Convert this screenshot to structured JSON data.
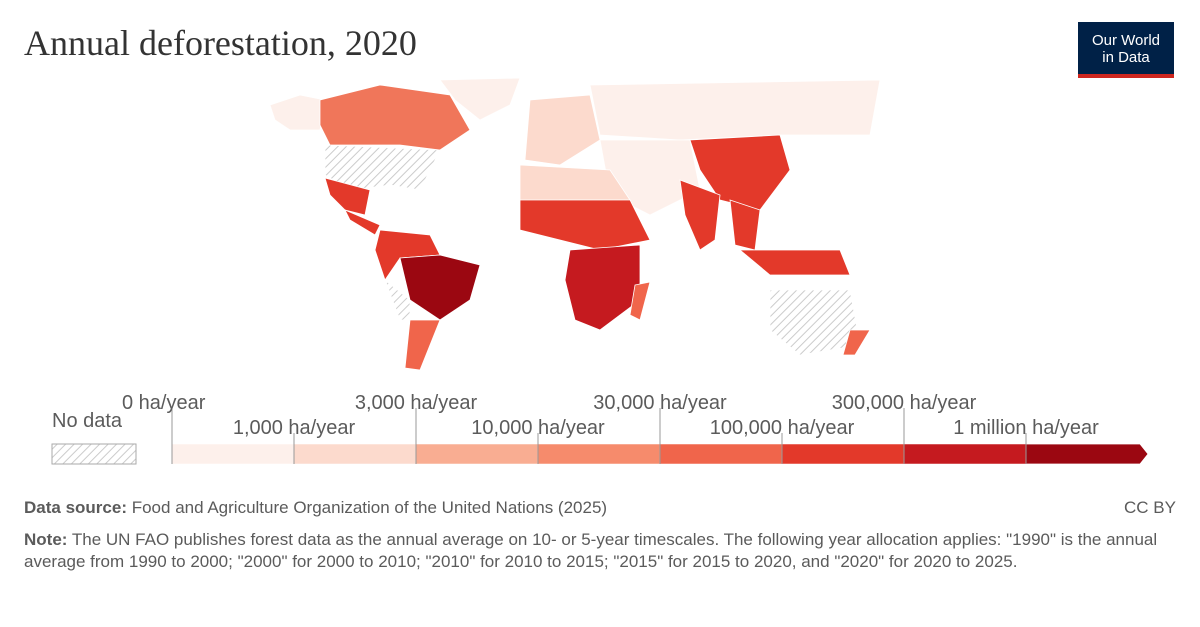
{
  "header": {
    "title": "Annual deforestation, 2020",
    "logo": {
      "line1": "Our World",
      "line2": "in Data"
    }
  },
  "legend": {
    "no_data": "No data",
    "ticks": [
      "0 ha/year",
      "1,000 ha/year",
      "3,000 ha/year",
      "10,000 ha/year",
      "30,000 ha/year",
      "100,000 ha/year",
      "300,000 ha/year",
      "1 million ha/year"
    ],
    "colors": [
      "#fdf0eb",
      "#fcdacd",
      "#f9ad92",
      "#f68b6c",
      "#f0654b",
      "#e3392a",
      "#c51a1f",
      "#9b0711"
    ]
  },
  "footer": {
    "source_label": "Data source:",
    "source": "Food and Agriculture Organization of the United Nations (2025)",
    "license": "CC BY",
    "note_label": "Note:",
    "note": "The UN FAO publishes forest data as the annual average on 10- or 5-year timescales. The following year allocation applies: \"1990\" is the annual average from 1990 to 2000; \"2000\" for 2000 to 2010; \"2010\" for 2010 to 2015; \"2015\" for 2015 to 2020, and \"2020\" for 2020 to 2025."
  }
}
